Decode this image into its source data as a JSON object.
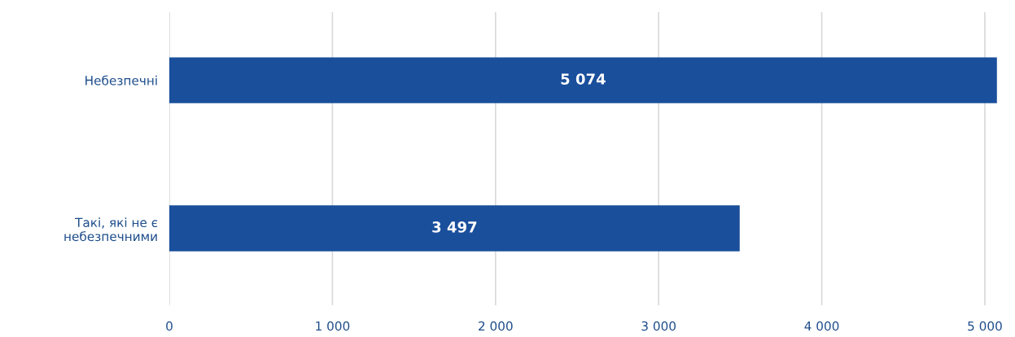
{
  "chart_data": {
    "type": "bar",
    "orientation": "horizontal",
    "categories": [
      "Небезпечні",
      "Такі, які не є\nнебезпечними"
    ],
    "values": [
      5074,
      3497
    ],
    "value_labels": [
      "5 074",
      "3 497"
    ],
    "color": "#1a4f9c",
    "xlim": [
      0,
      5100
    ],
    "xticks": [
      0,
      {
        "value": 1000,
        "label": "1 000"
      },
      {
        "value": 2000,
        "label": "2 000"
      },
      {
        "value": 3000,
        "label": "3 000"
      },
      {
        "value": 4000,
        "label": "4 000"
      },
      {
        "value": 5000,
        "label": "5 000"
      }
    ],
    "grid": "x",
    "legend": false
  }
}
